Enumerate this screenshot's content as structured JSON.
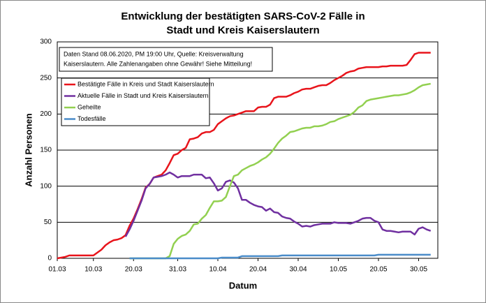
{
  "chart_data": {
    "type": "line",
    "title": [
      "Entwicklung der bestätigten SARS-CoV-2 Fälle in",
      "Stadt und Kreis Kaiserslautern"
    ],
    "annotation": [
      "Daten Stand 08.06.2020, PM 19:00 Uhr, Quelle: Kreisverwaltung",
      "Kaiserslautern. Alle Zahlenangaben ohne Gewähr! Siehe Mitteilung!"
    ],
    "x_label": "Datum",
    "y_label": "Anzahl Personen",
    "categories": [
      "01.03",
      null,
      null,
      null,
      null,
      null,
      null,
      null,
      null,
      "10.03",
      null,
      null,
      null,
      null,
      null,
      null,
      null,
      null,
      null,
      "20.03",
      null,
      null,
      null,
      null,
      null,
      null,
      null,
      null,
      null,
      null,
      "31.03",
      null,
      null,
      null,
      null,
      null,
      null,
      null,
      null,
      null,
      "10.04",
      null,
      null,
      null,
      null,
      null,
      null,
      null,
      null,
      null,
      "20.04",
      null,
      null,
      null,
      null,
      null,
      null,
      null,
      null,
      null,
      "30.04",
      null,
      null,
      null,
      null,
      null,
      null,
      null,
      null,
      null,
      "10.05",
      null,
      null,
      null,
      null,
      null,
      null,
      null,
      null,
      null,
      "20.05",
      null,
      null,
      null,
      null,
      null,
      null,
      null,
      null,
      null,
      "30.05",
      null,
      null,
      null
    ],
    "series": [
      {
        "name": "Bestätigte Fälle in Kreis und Stadt Kaiserslautern",
        "color": "#e8141b",
        "values": [
          0,
          1,
          2,
          4,
          4,
          4,
          4,
          4,
          4,
          4,
          8,
          12,
          18,
          22,
          25,
          26,
          28,
          32,
          45,
          55,
          68,
          82,
          98,
          103,
          112,
          114,
          116,
          122,
          132,
          143,
          145,
          150,
          153,
          165,
          166,
          168,
          173,
          175,
          175,
          178,
          186,
          190,
          194,
          197,
          198,
          200,
          202,
          204,
          204,
          204,
          209,
          210,
          210,
          213,
          222,
          224,
          224,
          224,
          226,
          229,
          231,
          234,
          235,
          235,
          237,
          239,
          240,
          240,
          243,
          247,
          250,
          253,
          257,
          259,
          260,
          263,
          264,
          265,
          265,
          265,
          265,
          266,
          266,
          267,
          267,
          267,
          267,
          268,
          275,
          283,
          285,
          285,
          285,
          285
        ]
      },
      {
        "name": "Aktuelle Fälle in Stadt und Kreis Kaiserslautern",
        "color": "#7030a0",
        "values": [
          null,
          null,
          null,
          null,
          null,
          null,
          null,
          null,
          null,
          null,
          null,
          null,
          null,
          null,
          null,
          null,
          null,
          30,
          40,
          52,
          66,
          80,
          97,
          103,
          112,
          113,
          114,
          116,
          119,
          116,
          112,
          114,
          114,
          114,
          116,
          116,
          116,
          111,
          112,
          104,
          94,
          97,
          106,
          108,
          105,
          97,
          81,
          81,
          77,
          74,
          72,
          71,
          66,
          69,
          64,
          63,
          58,
          56,
          55,
          51,
          48,
          44,
          45,
          44,
          46,
          47,
          48,
          48,
          48,
          50,
          49,
          49,
          49,
          48,
          50,
          52,
          55,
          56,
          56,
          52,
          50,
          40,
          38,
          38,
          37,
          36,
          37,
          37,
          37,
          33,
          41,
          43,
          40,
          38
        ]
      },
      {
        "name": "Geheilte",
        "color": "#92d050",
        "values": [
          null,
          null,
          null,
          null,
          null,
          null,
          null,
          null,
          null,
          null,
          null,
          null,
          null,
          null,
          null,
          null,
          null,
          null,
          0,
          0,
          0,
          0,
          0,
          0,
          0,
          0,
          0,
          0,
          3,
          20,
          27,
          31,
          33,
          38,
          47,
          48,
          55,
          60,
          70,
          79,
          79,
          80,
          85,
          100,
          114,
          116,
          122,
          125,
          128,
          130,
          133,
          137,
          140,
          145,
          152,
          160,
          166,
          170,
          175,
          176,
          178,
          180,
          181,
          181,
          183,
          183,
          184,
          186,
          189,
          190,
          193,
          195,
          197,
          199,
          203,
          209,
          212,
          218,
          220,
          221,
          222,
          223,
          224,
          225,
          226,
          226,
          227,
          228,
          230,
          233,
          237,
          240,
          241,
          242
        ]
      },
      {
        "name": "Todesfälle",
        "color": "#4a8cc9",
        "values": [
          null,
          null,
          null,
          null,
          null,
          null,
          null,
          null,
          null,
          null,
          null,
          null,
          null,
          null,
          null,
          null,
          null,
          null,
          0,
          0,
          0,
          0,
          0,
          0,
          0,
          0,
          0,
          0,
          0,
          0,
          0,
          0,
          0,
          0,
          0,
          0,
          0,
          0,
          0,
          0,
          0,
          1,
          1,
          1,
          1,
          1,
          3,
          3,
          3,
          3,
          3,
          3,
          3,
          3,
          3,
          3,
          4,
          4,
          4,
          4,
          4,
          4,
          4,
          4,
          4,
          4,
          4,
          4,
          4,
          4,
          4,
          4,
          4,
          4,
          4,
          4,
          4,
          4,
          4,
          4,
          5,
          5,
          5,
          5,
          5,
          5,
          5,
          5,
          5,
          5,
          5,
          5,
          5,
          5
        ]
      }
    ],
    "ylim": [
      0,
      300
    ],
    "yticks": [
      0,
      50,
      100,
      150,
      200,
      250,
      300
    ],
    "grid": true,
    "legend": "upper left"
  }
}
